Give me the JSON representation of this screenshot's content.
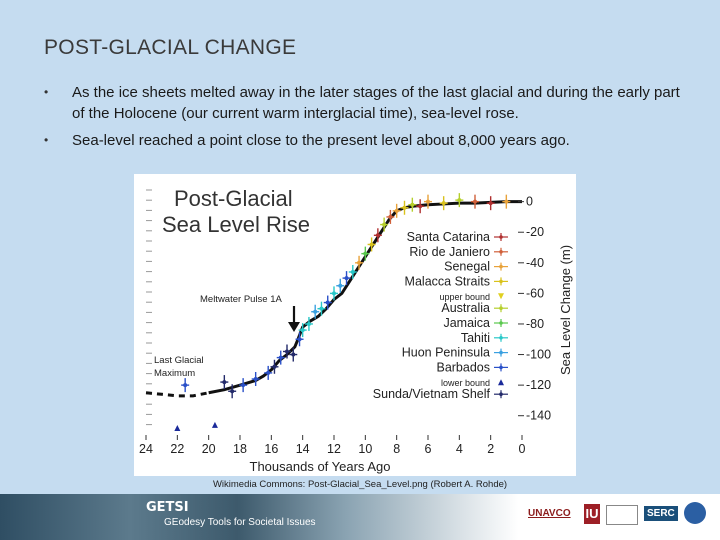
{
  "slide": {
    "title": "POST-GLACIAL CHANGE",
    "bullets": [
      "As the ice sheets melted away in the later stages of the last glacial and during the early part of the Holocene (our current warm interglacial time), sea-level rose.",
      "Sea-level reached a point close to the present level about 8,000 years ago."
    ],
    "caption": "Wikimedia Commons: Post-Glacial_Sea_Level.png (Robert A. Rohde)"
  },
  "footer": {
    "getsi": "GETSI",
    "tagline": "GEodesy Tools for Societal Issues",
    "logos": [
      "UNAVCO",
      "IU",
      "SERC",
      "NSF"
    ]
  },
  "chart_data": {
    "type": "scatter",
    "title": "Post-Glacial Sea Level Rise",
    "xlabel": "Thousands of Years Ago",
    "ylabel": "Sea Level Change (m)",
    "xlim": [
      24,
      0
    ],
    "ylim": [
      -150,
      5
    ],
    "x_ticks": [
      "24",
      "22",
      "20",
      "18",
      "16",
      "14",
      "12",
      "10",
      "8",
      "6",
      "4",
      "2",
      "0"
    ],
    "y_ticks": [
      "0",
      "-20",
      "-40",
      "-60",
      "-80",
      "-100",
      "-120",
      "-140"
    ],
    "annotations": [
      "Meltwater Pulse 1A",
      "Last Glacial Maximum"
    ],
    "legend_position": "right",
    "legend": [
      {
        "name": "Santa Catarina",
        "color": "#b03030",
        "marker": "plus"
      },
      {
        "name": "Rio de Janiero",
        "color": "#d0603a",
        "marker": "plus"
      },
      {
        "name": "Senegal",
        "color": "#e8a23a",
        "marker": "plus"
      },
      {
        "name": "Malacca Straits",
        "color": "#d9c21c",
        "marker": "plus"
      },
      {
        "name": "upper bound",
        "color": "#e0d020",
        "marker": "triangle-down"
      },
      {
        "name": "Australia",
        "color": "#b5cf2c",
        "marker": "plus"
      },
      {
        "name": "Jamaica",
        "color": "#5ac84e",
        "marker": "plus"
      },
      {
        "name": "Tahiti",
        "color": "#28c8c8",
        "marker": "plus"
      },
      {
        "name": "Huon Peninsula",
        "color": "#3aa0e0",
        "marker": "plus"
      },
      {
        "name": "Barbados",
        "color": "#2a50c8",
        "marker": "plus"
      },
      {
        "name": "lower bound",
        "color": "#1a2a9a",
        "marker": "triangle-up"
      },
      {
        "name": "Sunda/Vietnam Shelf",
        "color": "#232a6a",
        "marker": "plus"
      }
    ],
    "curve": {
      "x": [
        24,
        23,
        22,
        21,
        20,
        19,
        18,
        17,
        16.5,
        16,
        15.5,
        15,
        14.7,
        14.5,
        14.3,
        14,
        13.5,
        13,
        12.5,
        12,
        11.5,
        11,
        10.5,
        10,
        9.5,
        9,
        8.5,
        8,
        7.5,
        7,
        6,
        5,
        4,
        3,
        2,
        1,
        0
      ],
      "y": [
        -125,
        -126,
        -127,
        -127,
        -125,
        -123,
        -120,
        -117,
        -114,
        -110,
        -104,
        -100,
        -97,
        -95,
        -90,
        -82,
        -78,
        -75,
        -70,
        -64,
        -60,
        -52,
        -44,
        -36,
        -28,
        -20,
        -12,
        -6,
        -4,
        -3,
        -2,
        -1.5,
        -1,
        -1,
        -0.5,
        0,
        0
      ]
    },
    "points": [
      {
        "x": 22,
        "y": -148,
        "series": "lower bound"
      },
      {
        "x": 21.5,
        "y": -120,
        "series": "Barbados"
      },
      {
        "x": 19.6,
        "y": -146,
        "series": "lower bound"
      },
      {
        "x": 19,
        "y": -118,
        "series": "Sunda/Vietnam Shelf"
      },
      {
        "x": 18.5,
        "y": -124,
        "series": "Sunda/Vietnam Shelf"
      },
      {
        "x": 17.8,
        "y": -120,
        "series": "Barbados"
      },
      {
        "x": 17,
        "y": -116,
        "series": "Barbados"
      },
      {
        "x": 16.2,
        "y": -112,
        "series": "Barbados"
      },
      {
        "x": 15.8,
        "y": -108,
        "series": "Sunda/Vietnam Shelf"
      },
      {
        "x": 15.4,
        "y": -102,
        "series": "Barbados"
      },
      {
        "x": 15,
        "y": -98,
        "series": "Sunda/Vietnam Shelf"
      },
      {
        "x": 14.6,
        "y": -100,
        "series": "Sunda/Vietnam Shelf"
      },
      {
        "x": 14.2,
        "y": -90,
        "series": "Barbados"
      },
      {
        "x": 14,
        "y": -84,
        "series": "Tahiti"
      },
      {
        "x": 13.6,
        "y": -80,
        "series": "Tahiti"
      },
      {
        "x": 13.2,
        "y": -72,
        "series": "Huon Peninsula"
      },
      {
        "x": 12.8,
        "y": -70,
        "series": "Tahiti"
      },
      {
        "x": 12.4,
        "y": -66,
        "series": "Barbados"
      },
      {
        "x": 12,
        "y": -60,
        "series": "Tahiti"
      },
      {
        "x": 11.6,
        "y": -55,
        "series": "Huon Peninsula"
      },
      {
        "x": 11.2,
        "y": -50,
        "series": "Barbados"
      },
      {
        "x": 10.8,
        "y": -46,
        "series": "Tahiti"
      },
      {
        "x": 10.4,
        "y": -40,
        "series": "Senegal"
      },
      {
        "x": 10,
        "y": -34,
        "series": "Jamaica"
      },
      {
        "x": 9.6,
        "y": -28,
        "series": "Malacca Straits"
      },
      {
        "x": 9.2,
        "y": -22,
        "series": "Santa Catarina"
      },
      {
        "x": 8.8,
        "y": -15,
        "series": "Australia"
      },
      {
        "x": 8.4,
        "y": -10,
        "series": "Rio de Janiero"
      },
      {
        "x": 8,
        "y": -6,
        "series": "Senegal"
      },
      {
        "x": 7.5,
        "y": -4,
        "series": "Malacca Straits"
      },
      {
        "x": 7,
        "y": -2,
        "series": "Australia"
      },
      {
        "x": 6.5,
        "y": -3,
        "series": "Santa Catarina"
      },
      {
        "x": 6,
        "y": 0,
        "series": "Senegal"
      },
      {
        "x": 5,
        "y": -1,
        "series": "Malacca Straits"
      },
      {
        "x": 4,
        "y": 1,
        "series": "Australia"
      },
      {
        "x": 3,
        "y": 0,
        "series": "Rio de Janiero"
      },
      {
        "x": 2,
        "y": -1,
        "series": "Santa Catarina"
      },
      {
        "x": 1,
        "y": 0,
        "series": "Senegal"
      }
    ]
  }
}
